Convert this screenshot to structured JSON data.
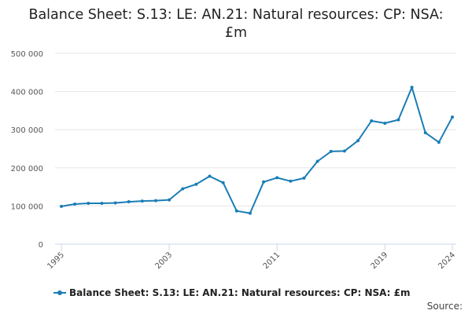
{
  "colors": {
    "series": "#1a7db6",
    "grid": "#e6e6e6",
    "axis": "#ccd6eb"
  },
  "source_label": "Source:",
  "chart_data": {
    "type": "line",
    "title": "Balance Sheet: S.13: LE: AN.21: Natural resources: CP: NSA: £m",
    "xlabel": "",
    "ylabel": "",
    "ylim": [
      0,
      500000
    ],
    "y_ticks": [
      0,
      100000,
      200000,
      300000,
      400000,
      500000
    ],
    "y_tick_labels": [
      "0",
      "100 000",
      "200 000",
      "300 000",
      "400 000",
      "500 000"
    ],
    "x_ticks": [
      "1995",
      "2003",
      "2011",
      "2019",
      "2024"
    ],
    "grid": true,
    "legend_position": "bottom",
    "series": [
      {
        "name": "Balance Sheet: S.13: LE: AN.21: Natural resources: CP: NSA: £m",
        "x": [
          1995,
          1996,
          1997,
          1998,
          1999,
          2000,
          2001,
          2002,
          2003,
          2004,
          2005,
          2006,
          2007,
          2008,
          2009,
          2010,
          2011,
          2012,
          2013,
          2014,
          2015,
          2016,
          2017,
          2018,
          2019,
          2020,
          2021,
          2022,
          2023,
          2024
        ],
        "values": [
          99000,
          105000,
          107000,
          107000,
          108000,
          111000,
          113000,
          114000,
          116000,
          145000,
          157000,
          178000,
          161000,
          87000,
          81000,
          163000,
          174000,
          165000,
          173000,
          217000,
          243000,
          244000,
          271000,
          323000,
          317000,
          326000,
          411000,
          292000,
          267000,
          333000
        ]
      }
    ]
  }
}
